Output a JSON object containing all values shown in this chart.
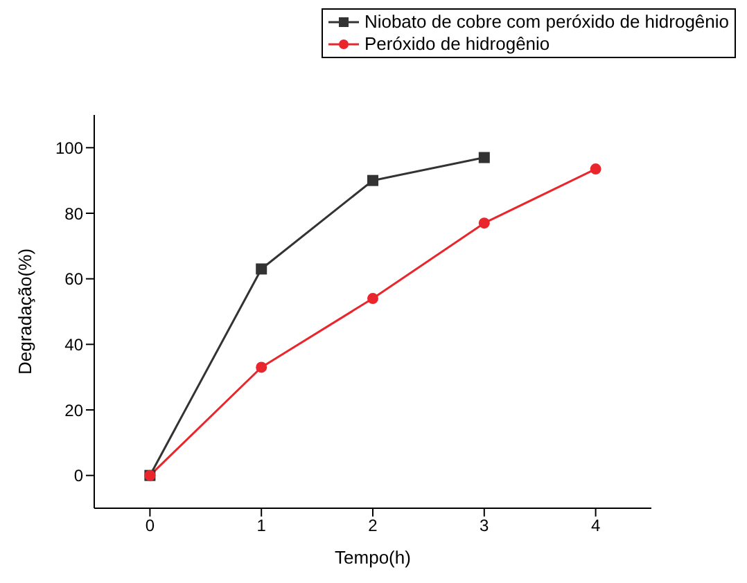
{
  "chart_data": {
    "type": "line",
    "xlabel": "Tempo(h)",
    "ylabel": "Degradação(%)",
    "xlim": [
      -0.5,
      4.5
    ],
    "xticks": [
      0,
      1,
      2,
      3,
      4
    ],
    "ylim": [
      -10,
      110
    ],
    "yticks": [
      0,
      20,
      40,
      60,
      80,
      100
    ],
    "grid": false,
    "legend": "top right",
    "line_style": "solid",
    "series": [
      {
        "name": "Niobato de cobre com peróxido de hidrogênio",
        "color": "#333333",
        "marker": "square",
        "x": [
          0,
          1,
          2,
          3
        ],
        "values": [
          0,
          63,
          90,
          97
        ]
      },
      {
        "name": "Peróxido de hidrogênio",
        "color": "#e8262c",
        "marker": "circle",
        "x": [
          0,
          1,
          2,
          3,
          4
        ],
        "values": [
          0,
          33,
          54,
          77,
          93.5
        ]
      }
    ]
  }
}
